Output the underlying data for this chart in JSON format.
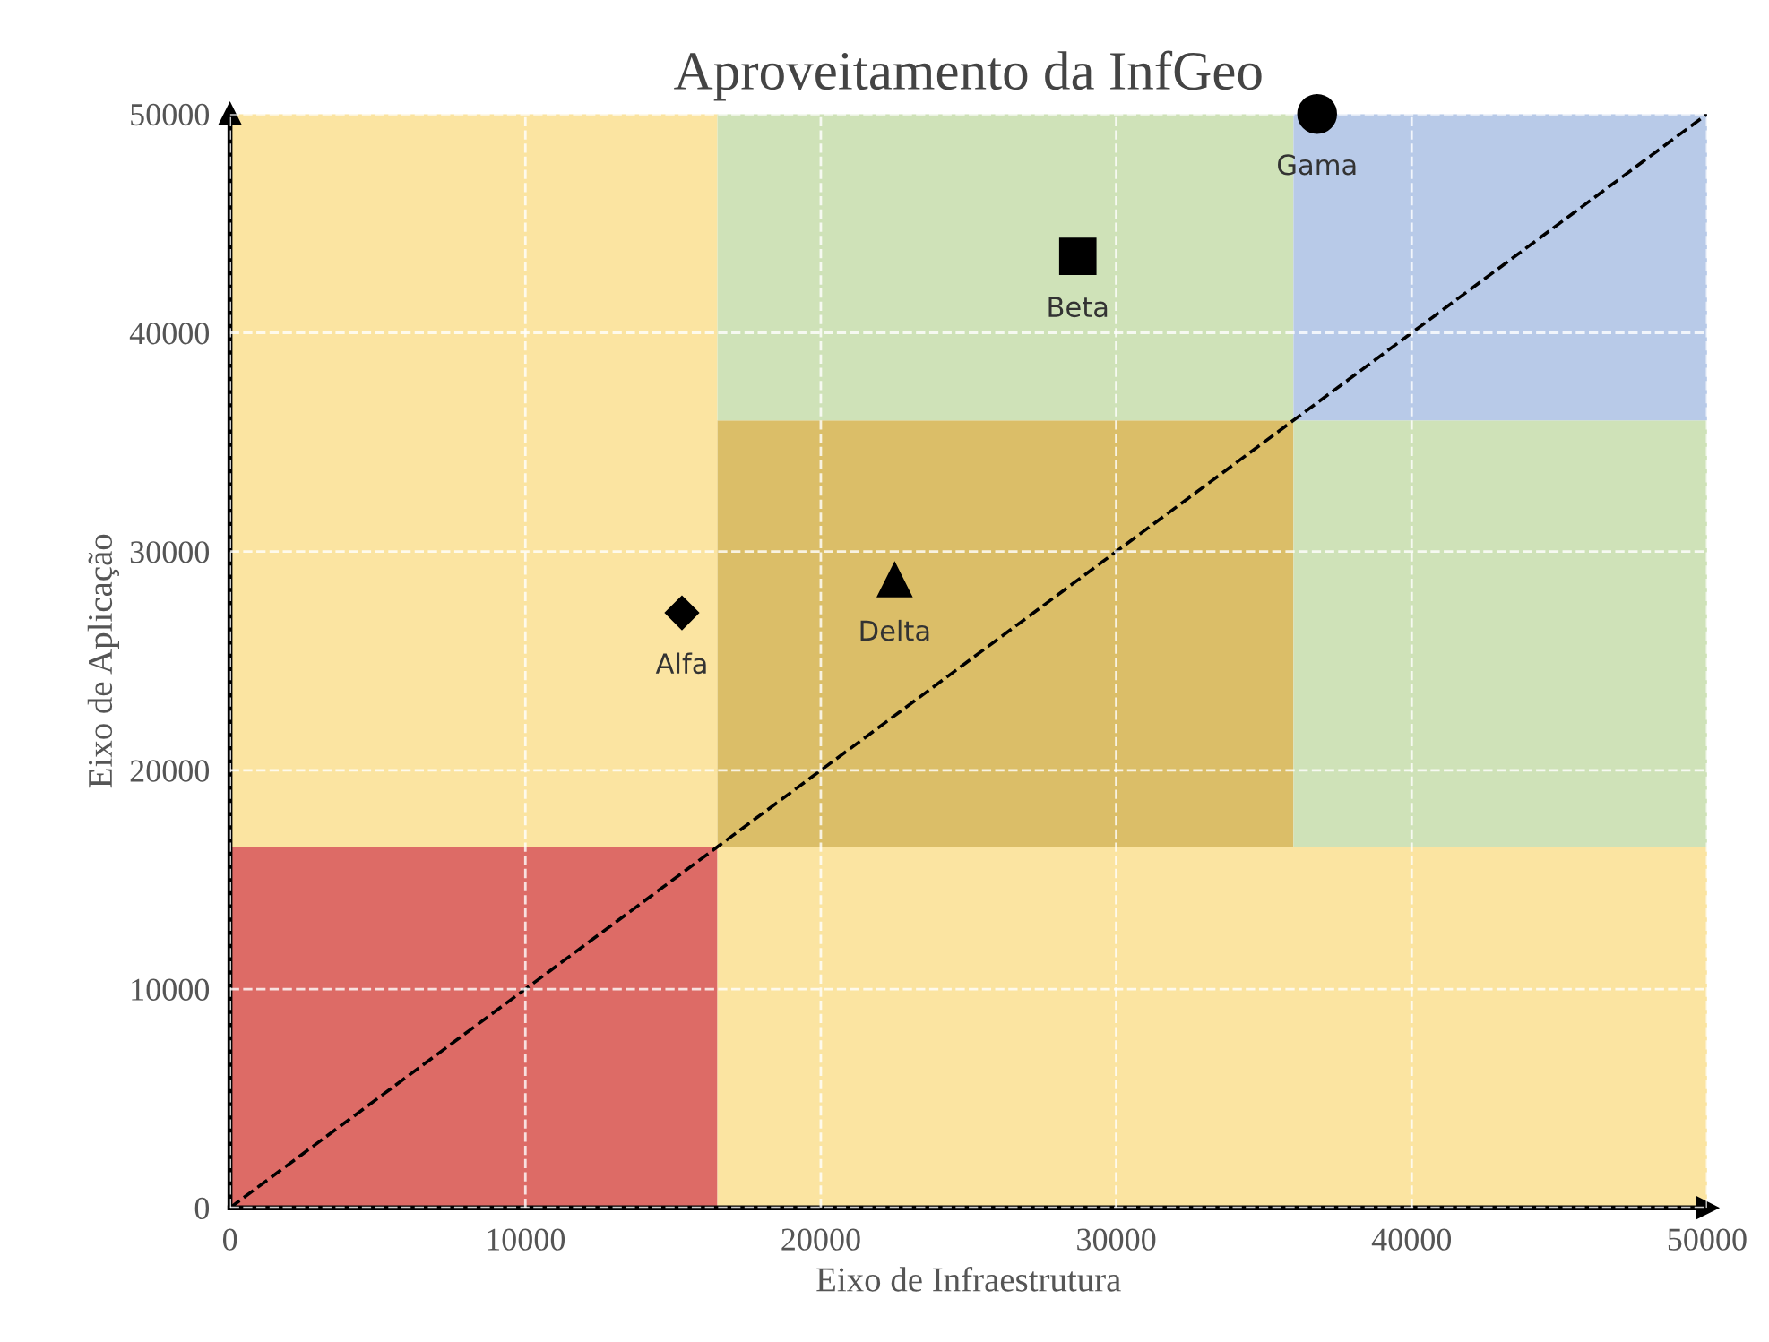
{
  "chart_data": {
    "type": "scatter",
    "title": "Aproveitamento da InfGeo",
    "xlabel": "Eixo de Infraestrutura",
    "ylabel": "Eixo de Aplicação",
    "xlim": [
      0,
      50000
    ],
    "ylim": [
      0,
      50000
    ],
    "xticks": [
      0,
      10000,
      20000,
      30000,
      40000,
      50000
    ],
    "yticks": [
      0,
      10000,
      20000,
      30000,
      40000,
      50000
    ],
    "grid": true,
    "series": [
      {
        "type": "line",
        "x": [
          0,
          50000
        ],
        "values": [
          0,
          50000
        ],
        "color": "#000000",
        "line_style": "dashed"
      },
      {
        "name": "Alfa",
        "x": [
          15300
        ],
        "values": [
          27200
        ],
        "color": "#000000",
        "marker": "diamond"
      },
      {
        "name": "Delta",
        "x": [
          22500
        ],
        "values": [
          28700
        ],
        "color": "#000000",
        "marker": "triangle"
      },
      {
        "name": "Beta",
        "x": [
          28700
        ],
        "values": [
          43500
        ],
        "color": "#000000",
        "marker": "square"
      },
      {
        "name": "Gama",
        "x": [
          36800
        ],
        "values": [
          50000
        ],
        "color": "#000000",
        "marker": "circle"
      }
    ]
  }
}
